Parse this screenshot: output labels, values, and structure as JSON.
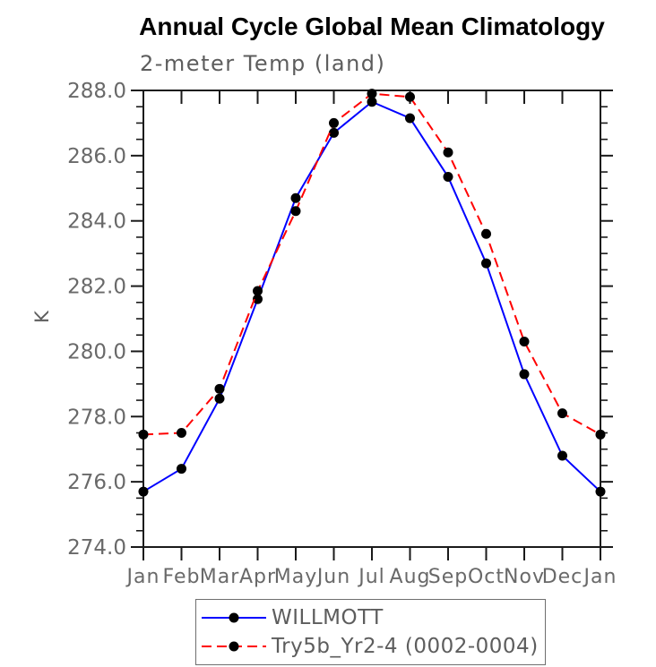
{
  "header": {
    "title": "Annual Cycle Global Mean Climatology",
    "subtitle": "2-meter Temp (land)"
  },
  "colors": {
    "axis": "#1a1a1a",
    "tick_label": "#696969",
    "series1": "#0000ff",
    "series2": "#ff0000",
    "marker": "#000000"
  },
  "chart_data": {
    "type": "line",
    "title": "Annual Cycle Global Mean Climatology",
    "subtitle": "2-meter Temp (land)",
    "xlabel": "",
    "ylabel": "K",
    "categories": [
      "Jan",
      "Feb",
      "Mar",
      "Apr",
      "May",
      "Jun",
      "Jul",
      "Aug",
      "Sep",
      "Oct",
      "Nov",
      "Dec",
      "Jan"
    ],
    "ylim": [
      274.0,
      288.0
    ],
    "ytick_interval": 2.0,
    "yminor_interval": 0.5,
    "ytick_labels": [
      "274.0",
      "276.0",
      "278.0",
      "280.0",
      "282.0",
      "284.0",
      "286.0",
      "288.0"
    ],
    "grid": false,
    "legend_position": "bottom",
    "series": [
      {
        "name": "WILLMOTT",
        "color": "#0000ff",
        "style": "solid",
        "marker": "circle",
        "marker_color": "#000000",
        "values": [
          275.7,
          276.4,
          278.55,
          281.6,
          284.7,
          286.7,
          287.65,
          287.15,
          285.35,
          282.7,
          279.3,
          276.8,
          275.7
        ]
      },
      {
        "name": "Try5b_Yr2-4 (0002-0004)",
        "color": "#ff0000",
        "style": "dashed",
        "marker": "circle",
        "marker_color": "#000000",
        "values": [
          277.45,
          277.5,
          278.85,
          281.85,
          284.3,
          287.0,
          287.9,
          287.8,
          286.1,
          283.6,
          280.3,
          278.1,
          277.45
        ]
      }
    ]
  }
}
